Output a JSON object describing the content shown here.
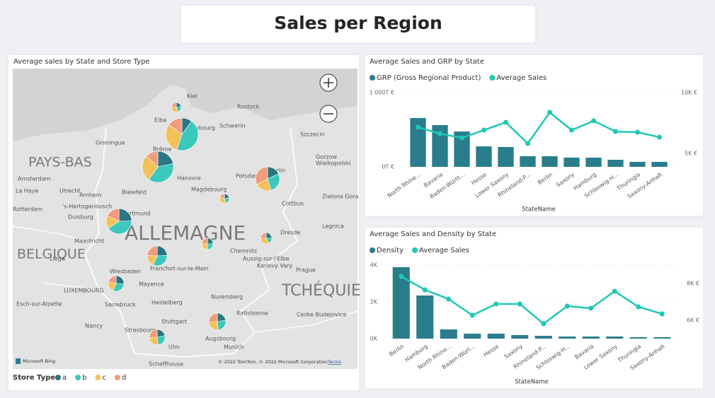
{
  "header": {
    "title": "Sales per Region"
  },
  "map": {
    "title": "Average sales by State and Store Type",
    "labels": [
      "PAYS-BAS",
      "Amsterdam",
      "La Haye",
      "Utrecht",
      "Arnhem",
      "Rotterdam",
      "'s-Hertogenbosch",
      "Duisburg",
      "Dortmund",
      "Bielefeld",
      "Groningue",
      "Elbe",
      "Kiel",
      "Rostock",
      "Schwerin",
      "Hambourg",
      "Brême",
      "Hanovre",
      "Magdebourg",
      "Potsdam",
      "Berlin",
      "Szczecin",
      "Gorzow",
      "Wielkopolski",
      "Zielona Gora",
      "Cottbus",
      "Legnica",
      "Dresde",
      "Chemnitz",
      "Aussig-sur-l'Elbe",
      "Karlovy Vary",
      "Prague",
      "ALLEMAGNE",
      "BELGIQUE",
      "Maastricht",
      "Liège",
      "Wiesbaden",
      "Mayence",
      "Francfort-sur-le-Main",
      "LUXEMBOURG",
      "Esch-sur-Alzette",
      "Sarrebruck",
      "Heidelberg",
      "Nancy",
      "Strasbourg",
      "Stuttgart",
      "Ulm",
      "Nuremberg",
      "Ratisbonne",
      "TCHÉQUIE",
      "Ceske Budejovice",
      "Augsbourg",
      "Munich",
      "Schaffhouse"
    ],
    "provider": "Microsoft Bing",
    "attribution": "© 2022 TomTom, © 2022 Microsoft Corporation",
    "terms": "Terms",
    "legend_title": "Store Type",
    "series": [
      {
        "name": "a",
        "color": "#2a7683"
      },
      {
        "name": "b",
        "color": "#3cc8bc"
      },
      {
        "name": "c",
        "color": "#f4c15a"
      },
      {
        "name": "d",
        "color": "#ef9d7c"
      }
    ],
    "pies": [
      [
        2,
        2,
        3,
        2
      ],
      [
        10,
        45,
        30,
        15
      ],
      [
        20,
        35,
        25,
        12
      ],
      [
        10,
        15,
        12,
        18
      ],
      [
        2,
        2,
        3,
        2
      ],
      [
        15,
        25,
        10,
        11
      ],
      [
        3,
        2,
        4,
        3
      ],
      [
        3,
        3,
        3,
        3
      ],
      [
        9,
        12,
        7,
        9
      ],
      [
        6,
        7,
        5,
        5
      ],
      [
        6,
        7,
        7,
        7
      ],
      [
        5,
        6,
        6,
        6
      ]
    ]
  },
  "chart_data": [
    {
      "type": "combo",
      "title": "Average Sales and GRP by State",
      "categories": [
        "North Rhine...",
        "Bavaria",
        "Baden-Württ...",
        "Hesse",
        "Lower Saxony",
        "Rhineland-P...",
        "Berlin",
        "Saxony",
        "Hamburg",
        "Schleswig-H...",
        "Thuringia",
        "Saxony-Anhalt"
      ],
      "series": [
        {
          "name": "GRP (Gross Regional Product)",
          "color": "#2a7d8c",
          "type": "bar",
          "values": [
            657,
            562,
            476,
            276,
            267,
            143,
            143,
            124,
            124,
            95,
            67,
            67
          ]
        },
        {
          "name": "Average Sales",
          "color": "#1ec8b4",
          "type": "line",
          "axis": "y2",
          "values": [
            7151,
            6628,
            6279,
            6919,
            7558,
            5814,
            8372,
            6919,
            7674,
            6802,
            6744,
            6337
          ]
        }
      ],
      "ylim": [
        0,
        1000
      ],
      "yticks": [
        {
          "value": 0,
          "label": "0T €"
        },
        {
          "value": 1000,
          "label": "1 000T €"
        }
      ],
      "y2lim": [
        3900,
        10000
      ],
      "y2ticks": [
        {
          "value": 5000,
          "label": "5K €"
        },
        {
          "value": 10000,
          "label": "10K €"
        }
      ],
      "x_label": "StateName",
      "grid": true
    },
    {
      "type": "combo",
      "title": "Average Sales and Density by State",
      "categories": [
        "Berlin",
        "Hamburg",
        "North Rhine...",
        "Baden-Würt...",
        "Hesse",
        "Saxony",
        "Rhineland-P...",
        "Schleswig-H...",
        "Bavaria",
        "Lower Saxony",
        "Thuringia",
        "Saxony-Anhalt"
      ],
      "series": [
        {
          "name": "Density",
          "color": "#2a7d8c",
          "type": "bar",
          "values": [
            3885,
            2346,
            500,
            269,
            269,
            192,
            154,
            115,
            115,
            115,
            77,
            77
          ]
        },
        {
          "name": "Average Sales",
          "color": "#1ec8b4",
          "type": "line",
          "axis": "y2",
          "values": [
            8385,
            7654,
            7154,
            6269,
            6885,
            6885,
            5808,
            6769,
            6654,
            7577,
            6731,
            6346
          ]
        }
      ],
      "ylim": [
        0,
        4000
      ],
      "yticks": [
        {
          "value": 0,
          "label": "0K"
        },
        {
          "value": 2000,
          "label": "2K"
        },
        {
          "value": 4000,
          "label": "4K"
        }
      ],
      "y2lim": [
        5000,
        9000
      ],
      "y2ticks": [
        {
          "value": 6000,
          "label": "6K €"
        },
        {
          "value": 8000,
          "label": "8K €"
        }
      ],
      "x_label": "StateName",
      "grid": true
    }
  ]
}
